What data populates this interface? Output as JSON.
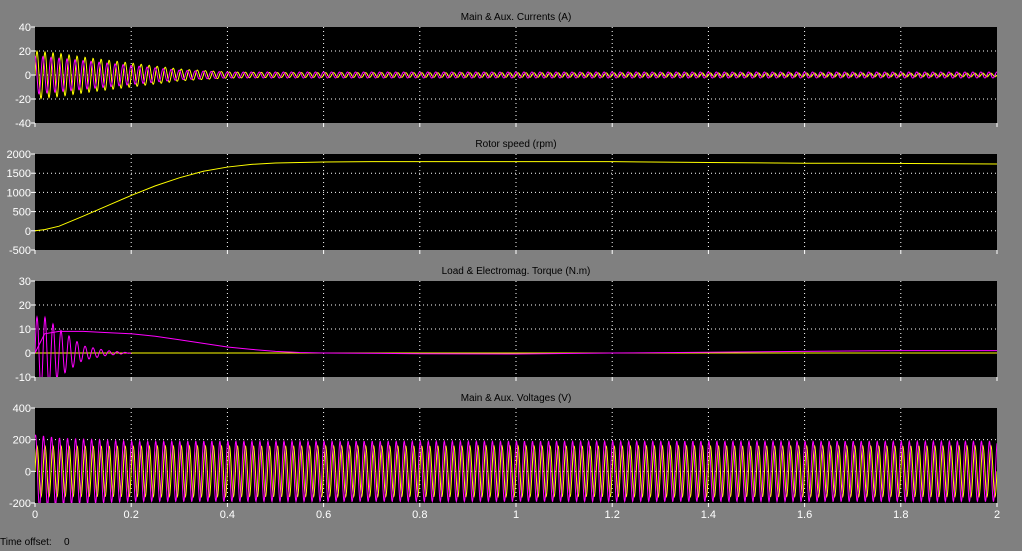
{
  "colors": {
    "background": "#808080",
    "plot_bg": "#000000",
    "grid": "#ffffff",
    "series_a": "#ffff00",
    "series_b": "#ff00ff"
  },
  "status": {
    "time_offset_label": "Time offset:",
    "time_offset_value": "0"
  },
  "chart_data": [
    {
      "type": "line",
      "title": "Main & Aux. Currents  (A)",
      "xlim": [
        0,
        2
      ],
      "xticks": [
        "0",
        "0.2",
        "0.4",
        "0.6",
        "0.8",
        "1",
        "1.2",
        "1.4",
        "1.6",
        "1.8",
        "2"
      ],
      "show_xtick_labels": false,
      "ylim": [
        -40,
        40
      ],
      "yticks": [
        40,
        20,
        0,
        -20,
        -40
      ],
      "grid": true,
      "series": [
        {
          "color": "#ffff00",
          "kind": "osc",
          "freq": 60,
          "phase": 0,
          "x": [
            0,
            0.05,
            0.1,
            0.2,
            0.3,
            0.4,
            0.5,
            2.0
          ],
          "amplitude": [
            20,
            18,
            15,
            10,
            5,
            2.5,
            2,
            1.5
          ]
        },
        {
          "color": "#ff00ff",
          "kind": "osc",
          "freq": 60,
          "phase": 1.6,
          "x": [
            0,
            0.05,
            0.1,
            0.2,
            0.3,
            0.4,
            0.5,
            2.0
          ],
          "amplitude": [
            16,
            14,
            12,
            8,
            4,
            2.5,
            2.5,
            2.5
          ]
        }
      ]
    },
    {
      "type": "line",
      "title": "Rotor speed (rpm)",
      "xlim": [
        0,
        2
      ],
      "xticks": [
        "0",
        "0.2",
        "0.4",
        "0.6",
        "0.8",
        "1",
        "1.2",
        "1.4",
        "1.6",
        "1.8",
        "2"
      ],
      "show_xtick_labels": false,
      "ylim": [
        -500,
        2000
      ],
      "yticks": [
        2000,
        1500,
        1000,
        500,
        0,
        -500
      ],
      "grid": true,
      "series": [
        {
          "color": "#ffff00",
          "kind": "line",
          "x": [
            0,
            0.02,
            0.05,
            0.1,
            0.15,
            0.2,
            0.25,
            0.3,
            0.35,
            0.4,
            0.45,
            0.5,
            0.6,
            0.7,
            0.8,
            1.0,
            1.2,
            1.4,
            1.6,
            1.7,
            2.0
          ],
          "y": [
            0,
            30,
            120,
            380,
            650,
            920,
            1170,
            1380,
            1550,
            1660,
            1730,
            1765,
            1790,
            1800,
            1800,
            1800,
            1800,
            1780,
            1760,
            1760,
            1740
          ]
        }
      ]
    },
    {
      "type": "line",
      "title": "Load & Electromag. Torque (N.m)",
      "xlim": [
        0,
        2
      ],
      "xticks": [
        "0",
        "0.2",
        "0.4",
        "0.6",
        "0.8",
        "1",
        "1.2",
        "1.4",
        "1.6",
        "1.8",
        "2"
      ],
      "show_xtick_labels": false,
      "ylim": [
        -10,
        30
      ],
      "yticks": [
        30,
        20,
        10,
        0,
        -10
      ],
      "grid": true,
      "series": [
        {
          "color": "#ffff00",
          "kind": "line",
          "x": [
            0,
            2
          ],
          "y": [
            0,
            0
          ]
        },
        {
          "color": "#ff00ff",
          "kind": "osc",
          "freq": 60,
          "phase": 0,
          "x": [
            0,
            0.02,
            0.05,
            0.1,
            0.15,
            0.2
          ],
          "amplitude": [
            15,
            15,
            10,
            3,
            1,
            0
          ]
        },
        {
          "color": "#ff00ff",
          "kind": "line",
          "x": [
            0,
            0.02,
            0.05,
            0.1,
            0.15,
            0.2,
            0.25,
            0.3,
            0.35,
            0.4,
            0.45,
            0.5,
            0.55,
            0.6,
            0.8,
            1.0,
            1.2,
            1.4,
            1.6,
            1.8,
            2.0
          ],
          "y": [
            0,
            8,
            9,
            9,
            8.5,
            8,
            7,
            5.5,
            4,
            2.5,
            1.5,
            0.7,
            0.2,
            0,
            -0.3,
            -0.4,
            0,
            0.3,
            0.7,
            1,
            1
          ]
        }
      ]
    },
    {
      "type": "line",
      "title": "Main & Aux. Voltages (V)",
      "xlim": [
        0,
        2
      ],
      "xticks": [
        "0",
        "0.2",
        "0.4",
        "0.6",
        "0.8",
        "1",
        "1.2",
        "1.4",
        "1.6",
        "1.8",
        "2"
      ],
      "show_xtick_labels": true,
      "ylim": [
        -200,
        400
      ],
      "yticks": [
        400,
        200,
        0,
        -200
      ],
      "grid": true,
      "series": [
        {
          "color": "#ffff00",
          "kind": "osc",
          "freq": 60,
          "phase": 0,
          "x": [
            0,
            2
          ],
          "amplitude": [
            160,
            160
          ]
        },
        {
          "color": "#ff00ff",
          "kind": "osc",
          "freq": 60,
          "phase": 1.2,
          "x": [
            0,
            0.05,
            0.2,
            2
          ],
          "amplitude": [
            230,
            210,
            190,
            190
          ]
        }
      ]
    }
  ]
}
